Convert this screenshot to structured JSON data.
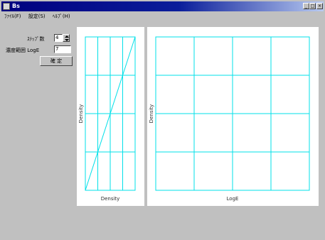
{
  "window": {
    "title": "Bs",
    "minimize": "_",
    "maximize": "□",
    "close": "×"
  },
  "menu": {
    "items": [
      "ﾌｧｲﾙ(F)",
      "設定(S)",
      "ﾍﾙﾌﾟ(H)"
    ]
  },
  "controls": {
    "step_label": "ｽﾃｯﾌﾟ数",
    "step_value": "4",
    "range_label": "濃度範囲 LogE",
    "range_value": "7",
    "ok_label": "確 定"
  },
  "colors": {
    "grid": "#00e0e8",
    "curve": "#00e0e8",
    "panel": "#ffffff",
    "face": "#c0c0c0"
  },
  "chart_data": [
    {
      "type": "line",
      "xlabel": "Density",
      "ylabel": "Density",
      "grid": true,
      "grid_divisions_x": 4,
      "grid_divisions_y": 4,
      "series": [
        {
          "x": [
            0,
            1
          ],
          "y": [
            0,
            1
          ]
        }
      ]
    },
    {
      "type": "line",
      "xlabel": "LogE",
      "ylabel": "Density",
      "grid": true,
      "grid_divisions_x": 4,
      "grid_divisions_y": 4,
      "series": []
    }
  ]
}
